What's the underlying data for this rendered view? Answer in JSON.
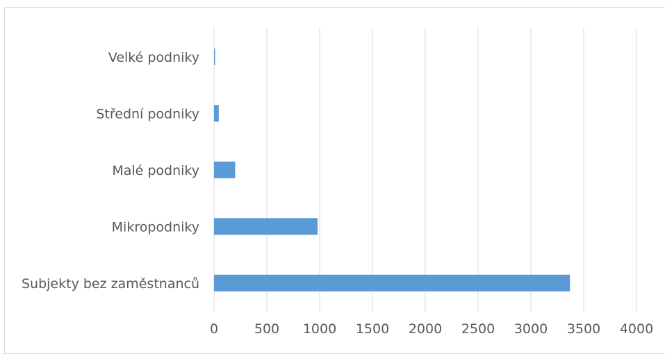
{
  "chart_data": {
    "type": "bar",
    "orientation": "horizontal",
    "categories": [
      "Velké podniky",
      "Střední podniky",
      "Malé podniky",
      "Mikropodniky",
      "Subjekty bez zaměstnanců"
    ],
    "values": [
      10,
      45,
      200,
      980,
      3370
    ],
    "xlim": [
      0,
      4000
    ],
    "xticks": [
      "0",
      "500",
      "1000",
      "1500",
      "2000",
      "2500",
      "3000",
      "3500",
      "4000"
    ],
    "title": "",
    "xlabel": "",
    "ylabel": "",
    "grid": "vertical",
    "legend": "none",
    "bar_color": "#5b9bd5",
    "grid_color": "#d9d9d9"
  }
}
